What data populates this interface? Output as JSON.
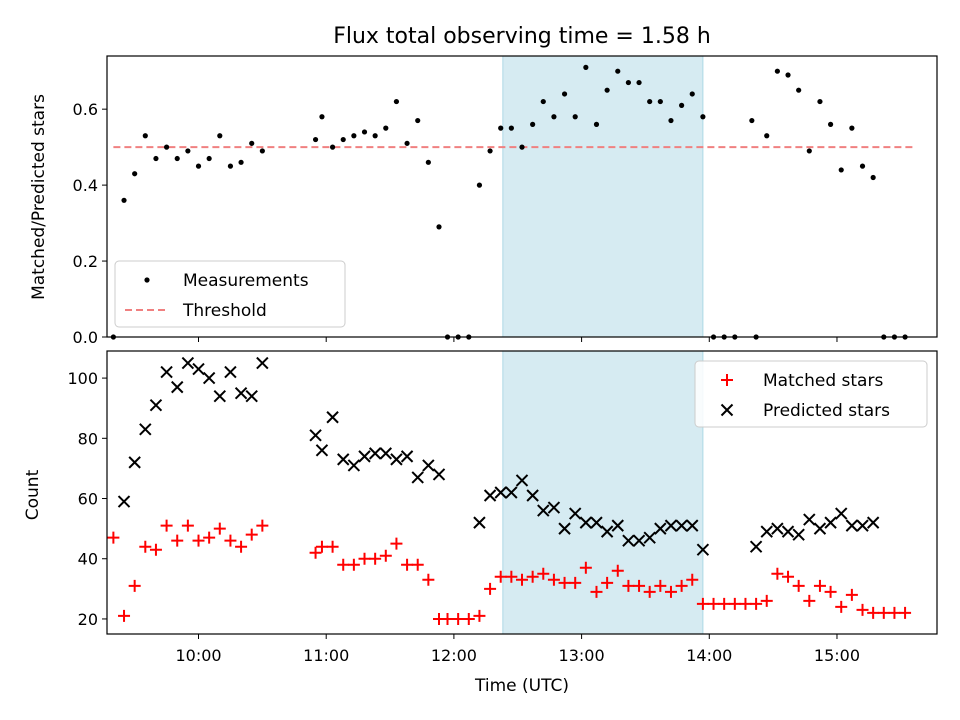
{
  "title": "Flux total observing time = 1.58 h",
  "xlabel": "Time (UTC)",
  "colors": {
    "highlight": "#add8e6",
    "threshold": "#f08080",
    "matched": "#ff0000",
    "predicted": "#000000",
    "measurement": "#000000"
  },
  "chart_data": [
    {
      "type": "scatter",
      "name": "top",
      "ylabel": "Matched/Predicted stars",
      "xlim": [
        "09:17",
        "15:47"
      ],
      "ylim": [
        0,
        0.74
      ],
      "x_ticks": [
        "10:00",
        "11:00",
        "12:00",
        "13:00",
        "14:00",
        "15:00"
      ],
      "y_ticks": [
        0.0,
        0.2,
        0.4,
        0.6
      ],
      "y_tick_labels": [
        "0.0",
        "0.2",
        "0.4",
        "0.6"
      ],
      "highlight_span": [
        "12:23",
        "13:57"
      ],
      "threshold": {
        "name": "Threshold",
        "value": 0.5,
        "x_range": [
          "09:20",
          "15:36"
        ],
        "style": "dashed"
      },
      "legend": {
        "placement": "lower-left",
        "entries": [
          "Measurements",
          "Threshold"
        ]
      },
      "series": [
        {
          "name": "Measurements",
          "marker": "dot",
          "points": [
            [
              "09:20",
              0.0
            ],
            [
              "09:25",
              0.36
            ],
            [
              "09:30",
              0.43
            ],
            [
              "09:35",
              0.53
            ],
            [
              "09:40",
              0.47
            ],
            [
              "09:45",
              0.5
            ],
            [
              "09:50",
              0.47
            ],
            [
              "09:55",
              0.49
            ],
            [
              "10:00",
              0.45
            ],
            [
              "10:05",
              0.47
            ],
            [
              "10:10",
              0.53
            ],
            [
              "10:15",
              0.45
            ],
            [
              "10:20",
              0.46
            ],
            [
              "10:25",
              0.51
            ],
            [
              "10:30",
              0.49
            ],
            [
              "10:55",
              0.52
            ],
            [
              "10:58",
              0.58
            ],
            [
              "11:03",
              0.5
            ],
            [
              "11:08",
              0.52
            ],
            [
              "11:13",
              0.53
            ],
            [
              "11:18",
              0.54
            ],
            [
              "11:23",
              0.53
            ],
            [
              "11:28",
              0.55
            ],
            [
              "11:33",
              0.62
            ],
            [
              "11:38",
              0.51
            ],
            [
              "11:43",
              0.57
            ],
            [
              "11:48",
              0.46
            ],
            [
              "11:53",
              0.29
            ],
            [
              "11:57",
              0.0
            ],
            [
              "12:02",
              0.0
            ],
            [
              "12:07",
              0.0
            ],
            [
              "12:12",
              0.4
            ],
            [
              "12:17",
              0.49
            ],
            [
              "12:22",
              0.55
            ],
            [
              "12:27",
              0.55
            ],
            [
              "12:32",
              0.5
            ],
            [
              "12:37",
              0.56
            ],
            [
              "12:42",
              0.62
            ],
            [
              "12:47",
              0.58
            ],
            [
              "12:52",
              0.64
            ],
            [
              "12:57",
              0.58
            ],
            [
              "13:02",
              0.71
            ],
            [
              "13:07",
              0.56
            ],
            [
              "13:12",
              0.65
            ],
            [
              "13:17",
              0.7
            ],
            [
              "13:22",
              0.67
            ],
            [
              "13:27",
              0.67
            ],
            [
              "13:32",
              0.62
            ],
            [
              "13:37",
              0.62
            ],
            [
              "13:42",
              0.57
            ],
            [
              "13:47",
              0.61
            ],
            [
              "13:52",
              0.64
            ],
            [
              "13:57",
              0.58
            ],
            [
              "14:02",
              0.0
            ],
            [
              "14:07",
              0.0
            ],
            [
              "14:12",
              0.0
            ],
            [
              "14:20",
              0.57
            ],
            [
              "14:22",
              0.0
            ],
            [
              "14:27",
              0.53
            ],
            [
              "14:32",
              0.7
            ],
            [
              "14:37",
              0.69
            ],
            [
              "14:42",
              0.65
            ],
            [
              "14:47",
              0.49
            ],
            [
              "14:52",
              0.62
            ],
            [
              "14:57",
              0.56
            ],
            [
              "15:02",
              0.44
            ],
            [
              "15:07",
              0.55
            ],
            [
              "15:12",
              0.45
            ],
            [
              "15:17",
              0.42
            ],
            [
              "15:22",
              0.0
            ],
            [
              "15:27",
              0.0
            ],
            [
              "15:32",
              0.0
            ]
          ]
        }
      ]
    },
    {
      "type": "scatter",
      "name": "bottom",
      "ylabel": "Count",
      "xlim": [
        "09:17",
        "15:47"
      ],
      "ylim": [
        15,
        109
      ],
      "x_ticks": [
        "10:00",
        "11:00",
        "12:00",
        "13:00",
        "14:00",
        "15:00"
      ],
      "x_tick_labels": [
        "10:00",
        "11:00",
        "12:00",
        "13:00",
        "14:00",
        "15:00"
      ],
      "y_ticks": [
        20,
        40,
        60,
        80,
        100
      ],
      "y_tick_labels": [
        "20",
        "40",
        "60",
        "80",
        "100"
      ],
      "highlight_span": [
        "12:23",
        "13:57"
      ],
      "legend": {
        "placement": "upper-right",
        "entries": [
          "Matched stars",
          "Predicted stars"
        ]
      },
      "series": [
        {
          "name": "Matched stars",
          "marker": "plus",
          "points": [
            [
              "09:20",
              47
            ],
            [
              "09:25",
              21
            ],
            [
              "09:30",
              31
            ],
            [
              "09:35",
              44
            ],
            [
              "09:40",
              43
            ],
            [
              "09:45",
              51
            ],
            [
              "09:50",
              46
            ],
            [
              "09:55",
              51
            ],
            [
              "10:00",
              46
            ],
            [
              "10:05",
              47
            ],
            [
              "10:10",
              50
            ],
            [
              "10:15",
              46
            ],
            [
              "10:20",
              44
            ],
            [
              "10:25",
              48
            ],
            [
              "10:30",
              51
            ],
            [
              "10:55",
              42
            ],
            [
              "10:58",
              44
            ],
            [
              "11:03",
              44
            ],
            [
              "11:08",
              38
            ],
            [
              "11:13",
              38
            ],
            [
              "11:18",
              40
            ],
            [
              "11:23",
              40
            ],
            [
              "11:28",
              41
            ],
            [
              "11:33",
              45
            ],
            [
              "11:38",
              38
            ],
            [
              "11:43",
              38
            ],
            [
              "11:48",
              33
            ],
            [
              "11:53",
              20
            ],
            [
              "11:57",
              20
            ],
            [
              "12:02",
              20
            ],
            [
              "12:07",
              20
            ],
            [
              "12:12",
              21
            ],
            [
              "12:17",
              30
            ],
            [
              "12:22",
              34
            ],
            [
              "12:27",
              34
            ],
            [
              "12:32",
              33
            ],
            [
              "12:37",
              34
            ],
            [
              "12:42",
              35
            ],
            [
              "12:47",
              33
            ],
            [
              "12:52",
              32
            ],
            [
              "12:57",
              32
            ],
            [
              "13:02",
              37
            ],
            [
              "13:07",
              29
            ],
            [
              "13:12",
              32
            ],
            [
              "13:17",
              36
            ],
            [
              "13:22",
              31
            ],
            [
              "13:27",
              31
            ],
            [
              "13:32",
              29
            ],
            [
              "13:37",
              31
            ],
            [
              "13:42",
              29
            ],
            [
              "13:47",
              31
            ],
            [
              "13:52",
              33
            ],
            [
              "13:57",
              25
            ],
            [
              "14:02",
              25
            ],
            [
              "14:07",
              25
            ],
            [
              "14:12",
              25
            ],
            [
              "14:17",
              25
            ],
            [
              "14:22",
              25
            ],
            [
              "14:27",
              26
            ],
            [
              "14:32",
              35
            ],
            [
              "14:37",
              34
            ],
            [
              "14:42",
              31
            ],
            [
              "14:47",
              26
            ],
            [
              "14:52",
              31
            ],
            [
              "14:57",
              29
            ],
            [
              "15:02",
              24
            ],
            [
              "15:07",
              28
            ],
            [
              "15:12",
              23
            ],
            [
              "15:17",
              22
            ],
            [
              "15:22",
              22
            ],
            [
              "15:27",
              22
            ],
            [
              "15:32",
              22
            ]
          ]
        },
        {
          "name": "Predicted stars",
          "marker": "x",
          "points": [
            [
              "09:25",
              59
            ],
            [
              "09:30",
              72
            ],
            [
              "09:35",
              83
            ],
            [
              "09:40",
              91
            ],
            [
              "09:45",
              102
            ],
            [
              "09:50",
              97
            ],
            [
              "09:55",
              105
            ],
            [
              "10:00",
              103
            ],
            [
              "10:05",
              100
            ],
            [
              "10:10",
              94
            ],
            [
              "10:15",
              102
            ],
            [
              "10:20",
              95
            ],
            [
              "10:25",
              94
            ],
            [
              "10:30",
              105
            ],
            [
              "10:55",
              81
            ],
            [
              "10:58",
              76
            ],
            [
              "11:03",
              87
            ],
            [
              "11:08",
              73
            ],
            [
              "11:13",
              71
            ],
            [
              "11:18",
              74
            ],
            [
              "11:23",
              75
            ],
            [
              "11:28",
              75
            ],
            [
              "11:33",
              73
            ],
            [
              "11:38",
              74
            ],
            [
              "11:43",
              67
            ],
            [
              "11:48",
              71
            ],
            [
              "11:53",
              68
            ],
            [
              "12:12",
              52
            ],
            [
              "12:17",
              61
            ],
            [
              "12:22",
              62
            ],
            [
              "12:27",
              62
            ],
            [
              "12:32",
              66
            ],
            [
              "12:37",
              61
            ],
            [
              "12:42",
              56
            ],
            [
              "12:47",
              57
            ],
            [
              "12:52",
              50
            ],
            [
              "12:57",
              55
            ],
            [
              "13:02",
              52
            ],
            [
              "13:07",
              52
            ],
            [
              "13:12",
              49
            ],
            [
              "13:17",
              51
            ],
            [
              "13:22",
              46
            ],
            [
              "13:27",
              46
            ],
            [
              "13:32",
              47
            ],
            [
              "13:37",
              50
            ],
            [
              "13:42",
              51
            ],
            [
              "13:47",
              51
            ],
            [
              "13:52",
              51
            ],
            [
              "13:57",
              43
            ],
            [
              "14:22",
              44
            ],
            [
              "14:27",
              49
            ],
            [
              "14:32",
              50
            ],
            [
              "14:37",
              49
            ],
            [
              "14:42",
              48
            ],
            [
              "14:47",
              53
            ],
            [
              "14:52",
              50
            ],
            [
              "14:57",
              52
            ],
            [
              "15:02",
              55
            ],
            [
              "15:07",
              51
            ],
            [
              "15:12",
              51
            ],
            [
              "15:17",
              52
            ]
          ]
        }
      ]
    }
  ]
}
